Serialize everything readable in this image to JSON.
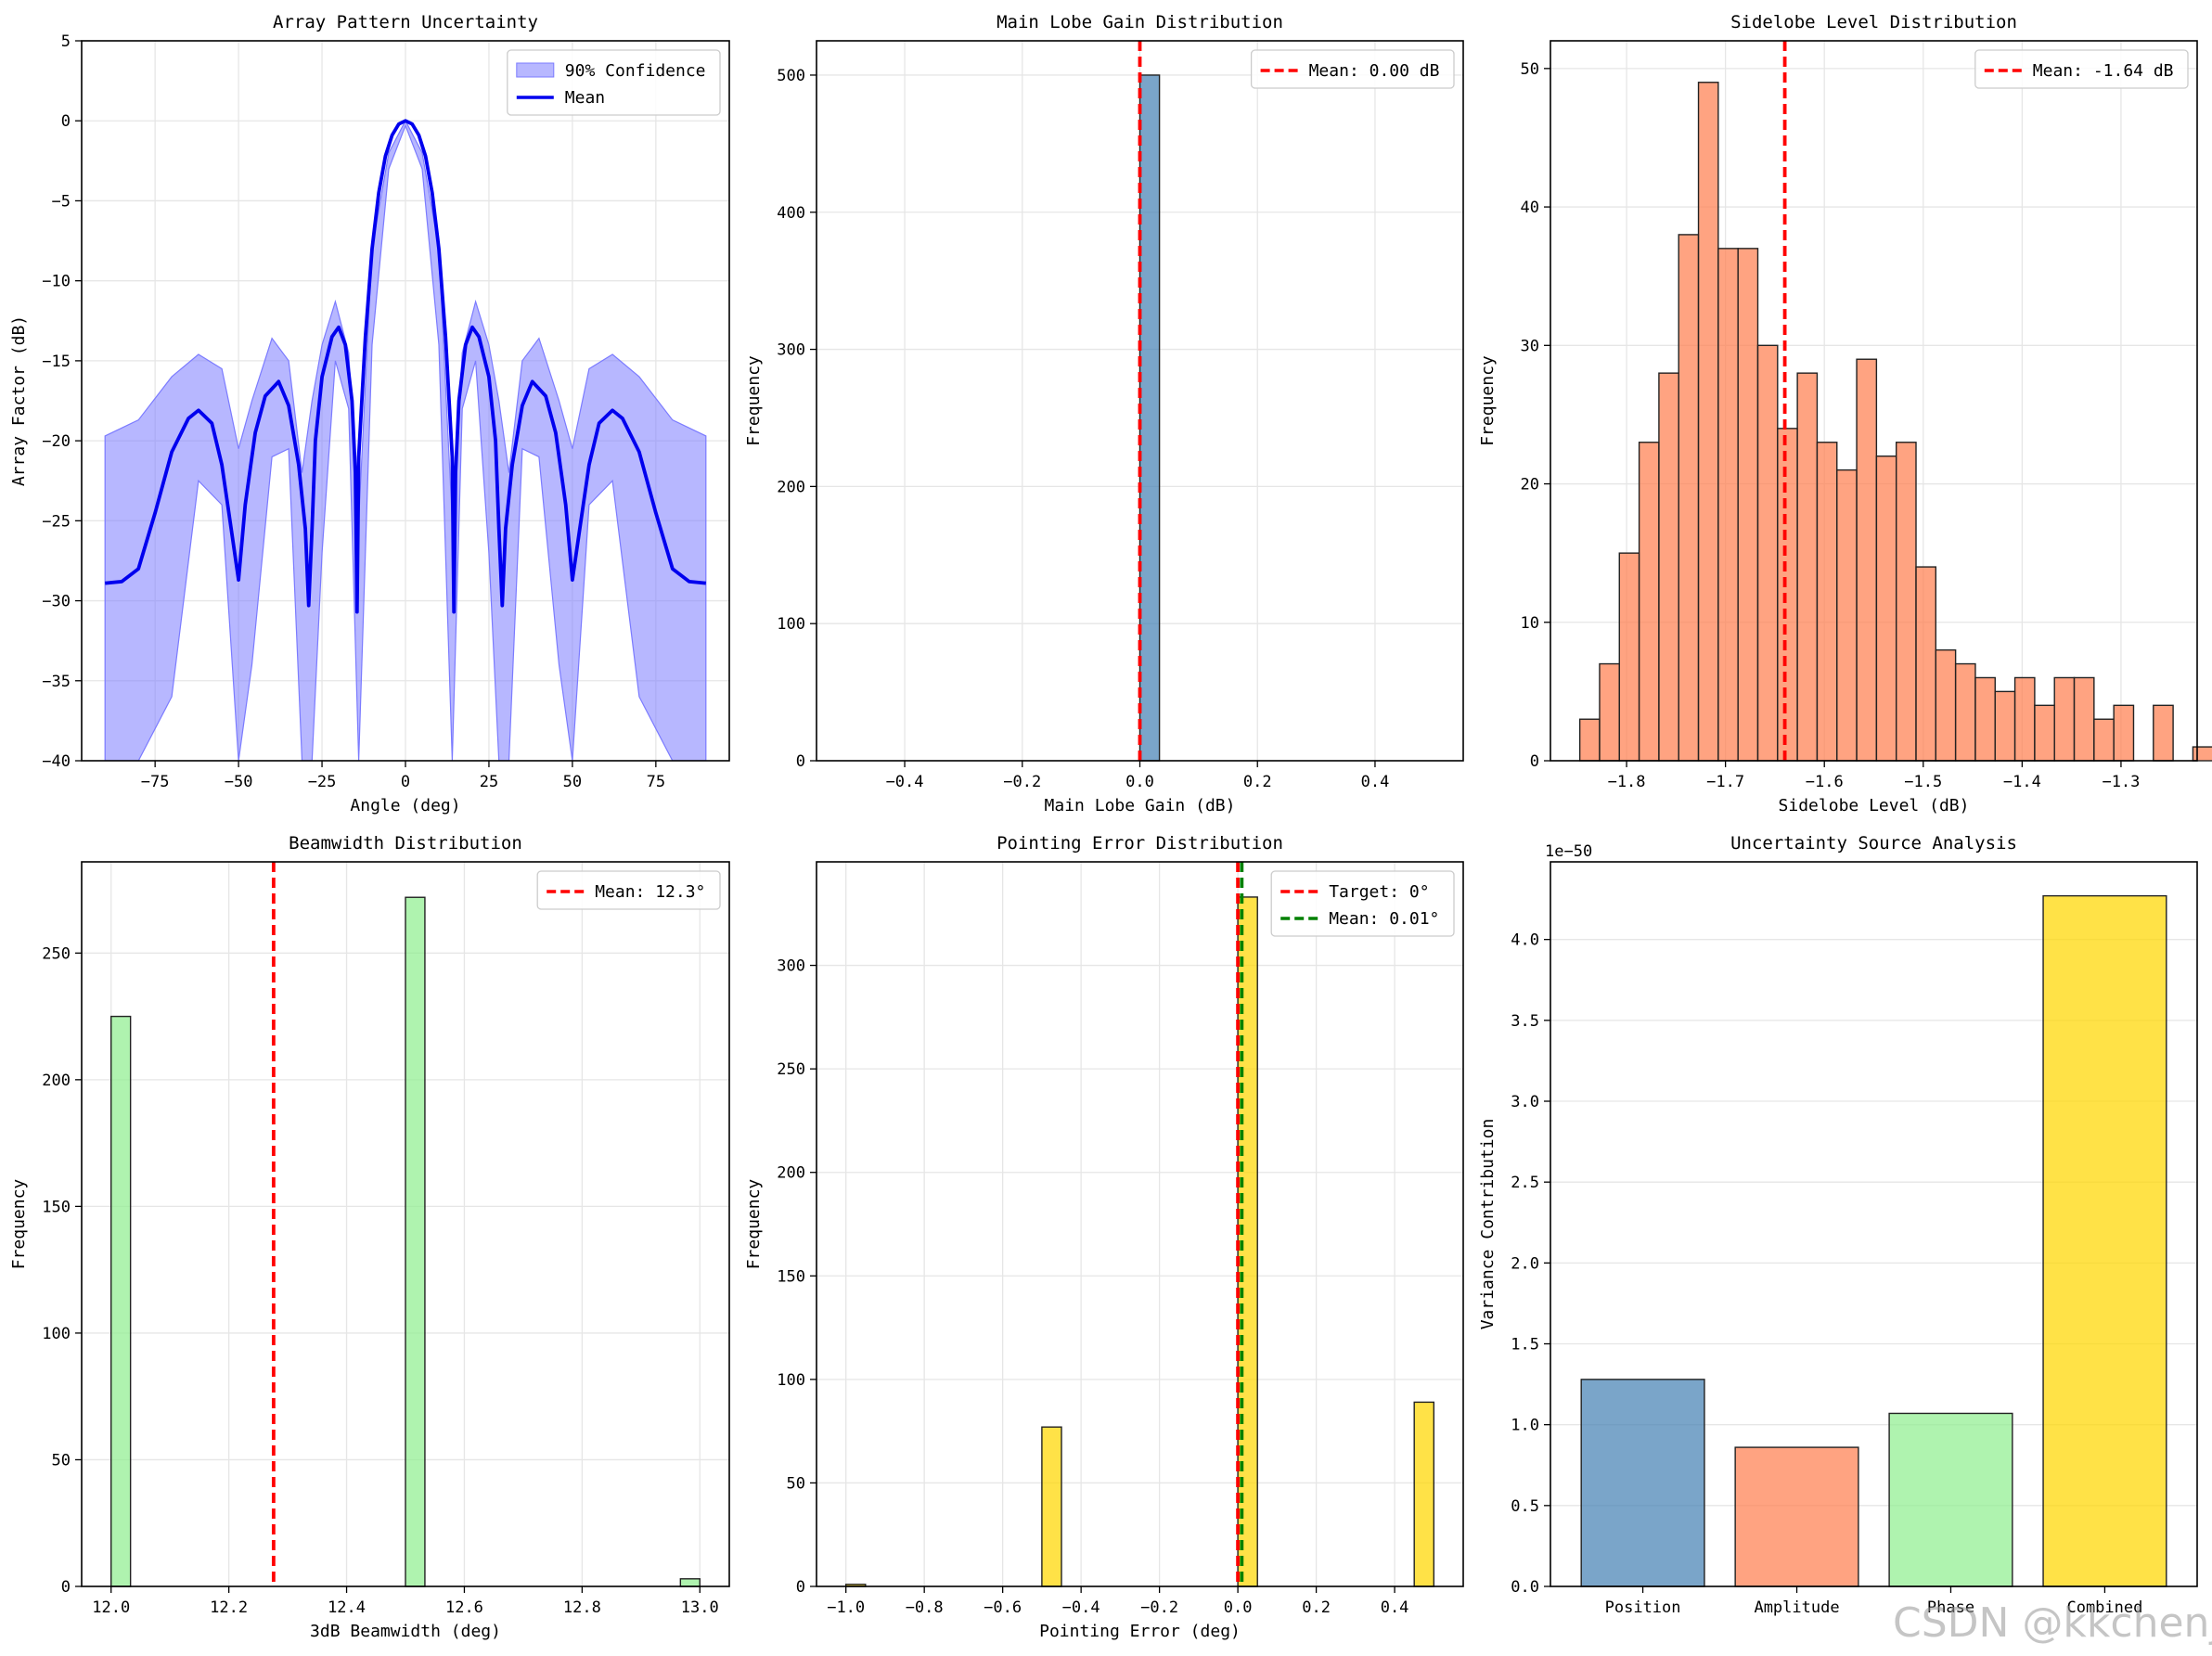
{
  "watermark": "CSDN @kkchenjj",
  "chart_data": [
    {
      "id": "pattern",
      "type": "line",
      "title": "Array Pattern Uncertainty",
      "xlabel": "Angle (deg)",
      "ylabel": "Array Factor (dB)",
      "xlim": [
        -97,
        97
      ],
      "ylim": [
        -40,
        5
      ],
      "xticks": [
        -75,
        -50,
        -25,
        0,
        25,
        50,
        75
      ],
      "yticks": [
        5,
        0,
        -5,
        -10,
        -15,
        -20,
        -25,
        -30,
        -35,
        -40
      ],
      "grid": true,
      "legend": "top-right",
      "series": [
        {
          "name": "90% Confidence",
          "kind": "band",
          "color": "#7b7bff",
          "x": [
            -90,
            -80,
            -70,
            -62,
            -55,
            -50,
            -46,
            -40,
            -35,
            -31,
            -28,
            -25,
            -21,
            -17,
            -14,
            -10,
            -5,
            0
          ],
          "upper": [
            -19.7,
            -18.7,
            -16.0,
            -14.6,
            -15.5,
            -20.5,
            -17.5,
            -13.6,
            -15.0,
            -22.0,
            -17.5,
            -14.0,
            -11.3,
            -14.5,
            -25.0,
            -8.0,
            -2.0,
            0
          ],
          "lower": [
            -40,
            -40,
            -36.0,
            -22.5,
            -24.0,
            -40,
            -34.0,
            -21.0,
            -20.5,
            -40,
            -40,
            -27.0,
            -15.0,
            -18.0,
            -40,
            -14.0,
            -3.0,
            -0.3
          ]
        },
        {
          "name": "Mean",
          "kind": "line",
          "color": "#0000ee",
          "x": [
            -90,
            -85,
            -80,
            -75,
            -70,
            -65,
            -62,
            -58,
            -55,
            -52,
            -50,
            -48,
            -45,
            -42,
            -38,
            -35,
            -32,
            -30,
            -29,
            -28,
            -27,
            -25,
            -22,
            -20,
            -18,
            -16,
            -15,
            -14.5,
            -14,
            -12,
            -10,
            -8,
            -6,
            -4,
            -2,
            0
          ],
          "y": [
            -28.9,
            -28.8,
            -28.0,
            -24.5,
            -20.7,
            -18.6,
            -18.1,
            -18.9,
            -21.5,
            -25.8,
            -28.7,
            -24.0,
            -19.5,
            -17.2,
            -16.3,
            -17.8,
            -21.5,
            -25.5,
            -30.3,
            -25.5,
            -20.0,
            -16.0,
            -13.5,
            -12.9,
            -14.0,
            -17.5,
            -22.0,
            -30.7,
            -21.0,
            -13.5,
            -8.0,
            -4.5,
            -2.2,
            -0.9,
            -0.2,
            0
          ]
        }
      ]
    },
    {
      "id": "mainlobe",
      "type": "bar",
      "title": "Main Lobe Gain Distribution",
      "xlabel": "Main Lobe Gain (dB)",
      "ylabel": "Frequency",
      "xlim": [
        -0.55,
        0.55
      ],
      "ylim": [
        0,
        525
      ],
      "xticks": [
        -0.4,
        -0.2,
        0.0,
        0.2,
        0.4
      ],
      "yticks": [
        0,
        100,
        200,
        300,
        400,
        500
      ],
      "grid": true,
      "legend": "top-right",
      "bar_color": "#4682b4",
      "bins": [
        {
          "x0": 0.0,
          "x1": 0.0333,
          "count": 500
        }
      ],
      "lines": [
        {
          "name": "Mean: 0.00 dB",
          "x": 0.0,
          "color": "#ff0000"
        }
      ]
    },
    {
      "id": "sidelobe",
      "type": "bar",
      "title": "Sidelobe Level Distribution",
      "xlabel": "Sidelobe Level (dB)",
      "ylabel": "Frequency",
      "xlim": [
        -1.877,
        -1.223
      ],
      "ylim": [
        0,
        52
      ],
      "xticks": [
        -1.8,
        -1.7,
        -1.6,
        -1.5,
        -1.4,
        -1.3
      ],
      "yticks": [
        0,
        10,
        20,
        30,
        40,
        50
      ],
      "grid": true,
      "legend": "top-right",
      "bar_color": "#ff7f50",
      "bin_start": -1.8473,
      "bin_width": 0.02,
      "counts": [
        3,
        7,
        15,
        23,
        28,
        38,
        49,
        37,
        37,
        30,
        24,
        28,
        23,
        21,
        29,
        22,
        23,
        14,
        8,
        7,
        6,
        5,
        6,
        4,
        6,
        6,
        3,
        4,
        0,
        4,
        0,
        1
      ],
      "lines": [
        {
          "name": "Mean: -1.64 dB",
          "x": -1.64,
          "color": "#ff0000"
        }
      ]
    },
    {
      "id": "beamwidth",
      "type": "bar",
      "title": "Beamwidth Distribution",
      "xlabel": "3dB Beamwidth (deg)",
      "ylabel": "Frequency",
      "xlim": [
        -0.05,
        1.05
      ],
      "ylim": [
        0,
        286
      ],
      "xticks": [
        "12.0",
        "12.2",
        "12.4",
        "12.6",
        "12.8",
        "13.0"
      ],
      "grid": true,
      "legend": "top-right",
      "bar_color": "#90ee90",
      "bins": [
        {
          "x0": 12.0,
          "x1": 12.033,
          "count": 225
        },
        {
          "x0": 12.5,
          "x1": 12.533,
          "count": 272
        },
        {
          "x0": 12.967,
          "x1": 13.0,
          "count": 3
        }
      ],
      "yticks": [
        0,
        50,
        100,
        150,
        200,
        250
      ],
      "lines": [
        {
          "name": "Mean: 12.3°",
          "x": 12.276,
          "color": "#ff0000"
        }
      ]
    },
    {
      "id": "pointing",
      "type": "bar",
      "title": "Pointing Error Distribution",
      "xlabel": "Pointing Error (deg)",
      "ylabel": "Frequency",
      "xlim": [
        -1.075,
        0.575
      ],
      "ylim": [
        0,
        350
      ],
      "xticks": [
        -1.0,
        -0.8,
        -0.6,
        -0.4,
        -0.2,
        0.0,
        0.2,
        0.4
      ],
      "yticks": [
        0,
        50,
        100,
        150,
        200,
        250,
        300
      ],
      "grid": true,
      "legend": "top-right",
      "bar_color": "#ffd700",
      "bins": [
        {
          "x0": -1.0,
          "x1": -0.95,
          "count": 1
        },
        {
          "x0": -0.5,
          "x1": -0.45,
          "count": 77
        },
        {
          "x0": 0.0,
          "x1": 0.05,
          "count": 333
        },
        {
          "x0": 0.45,
          "x1": 0.5,
          "count": 89
        }
      ],
      "lines": [
        {
          "name": "Target: 0°",
          "x": 0.0,
          "color": "#ff0000"
        },
        {
          "name": "Mean: 0.01°",
          "x": 0.01,
          "color": "#008000"
        }
      ]
    },
    {
      "id": "sources",
      "type": "bar",
      "title": "Uncertainty Source Analysis",
      "xlabel": "",
      "ylabel": "Variance Contribution",
      "offset_label": "1e−50",
      "ylim": [
        0,
        4.48
      ],
      "yticks": [
        0.0,
        0.5,
        1.0,
        1.5,
        2.0,
        2.5,
        3.0,
        3.5,
        4.0
      ],
      "grid": true,
      "categories": [
        "Position",
        "Amplitude",
        "Phase",
        "Combined"
      ],
      "values": [
        1.28,
        0.86,
        1.07,
        4.27
      ],
      "colors": [
        "#4682b4",
        "#ff7f50",
        "#90ee90",
        "#ffd700"
      ]
    }
  ]
}
